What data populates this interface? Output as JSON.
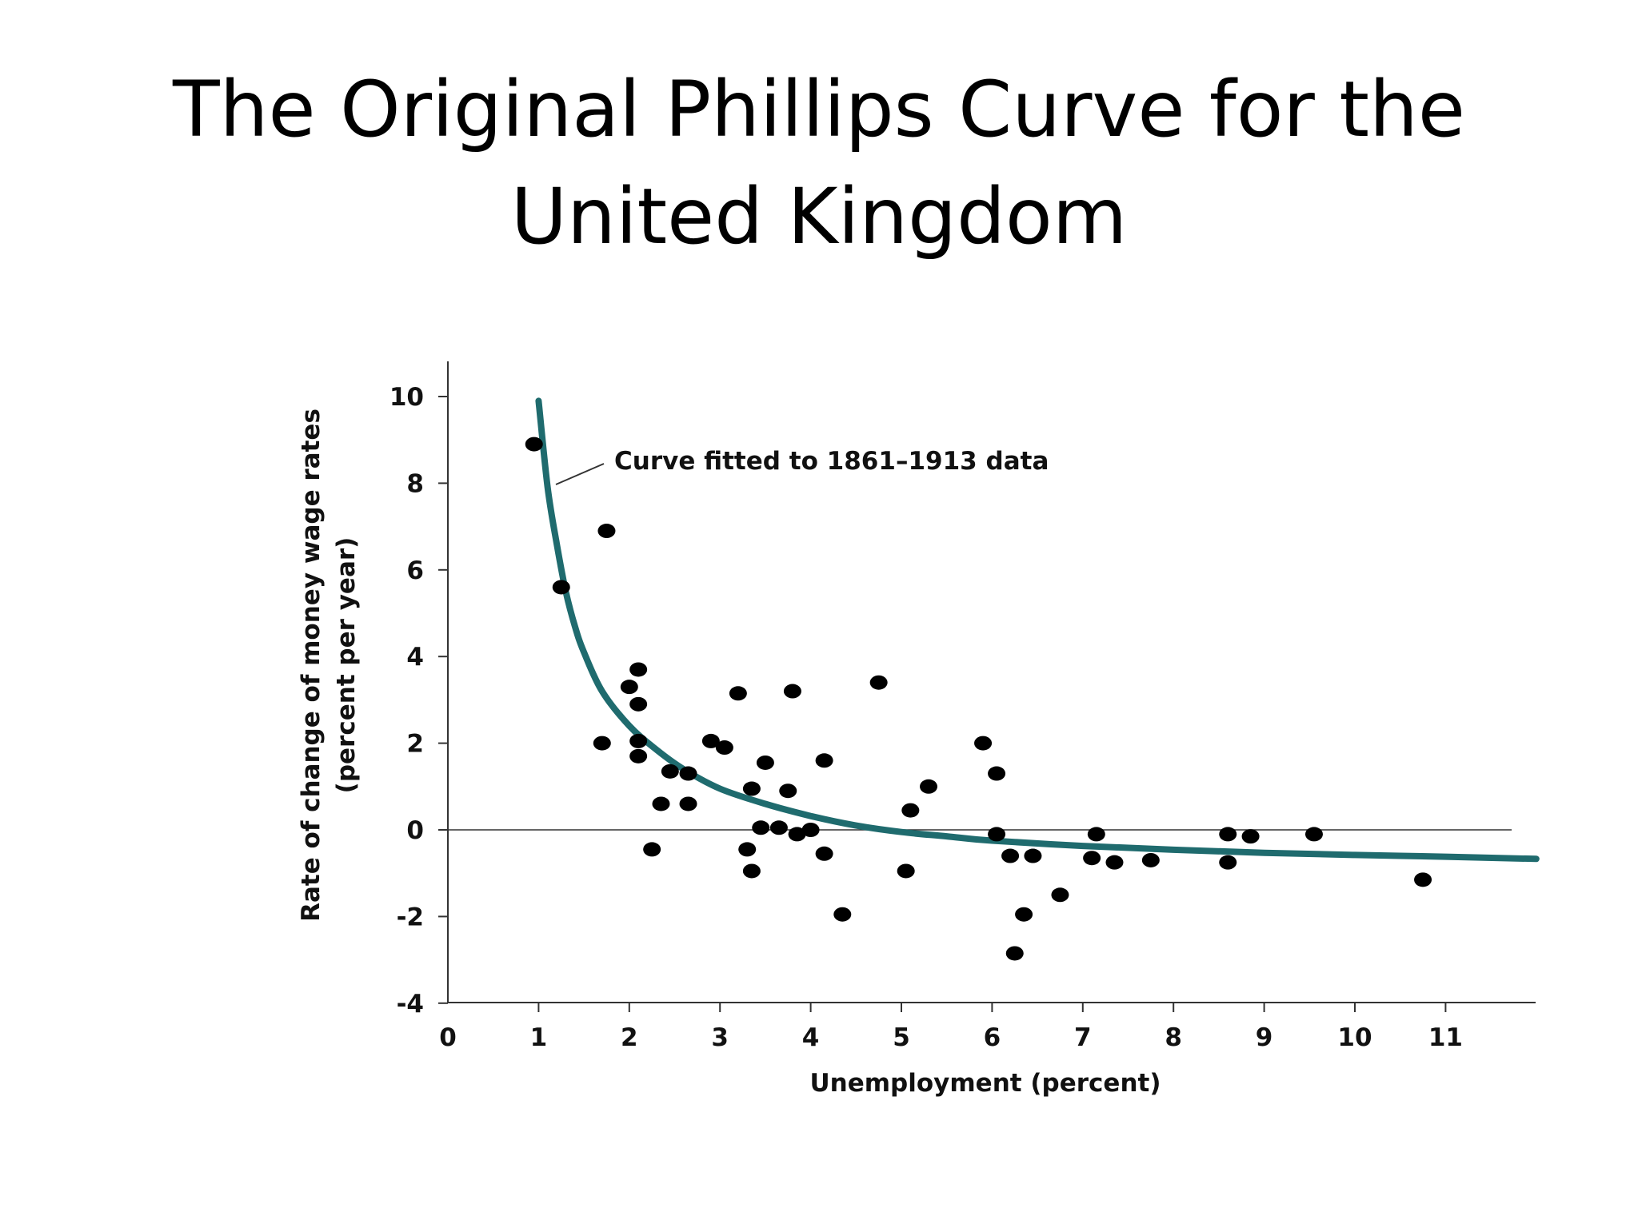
{
  "slide": {
    "title_line1": "The Original Phillips Curve for the",
    "title_line2": "United Kingdom"
  },
  "chart_data": {
    "type": "scatter",
    "title": "",
    "xlabel": "Unemployment (percent)",
    "ylabel_line1": "Rate of change of money wage rates",
    "ylabel_line2": "(percent per year)",
    "xlim": [
      0,
      12
    ],
    "ylim": [
      -4,
      10
    ],
    "x_ticks": [
      0,
      1,
      2,
      3,
      4,
      5,
      6,
      7,
      8,
      9,
      10,
      11
    ],
    "y_ticks": [
      10,
      8,
      6,
      4,
      2,
      0,
      -2,
      -4
    ],
    "grid": false,
    "zero_line": true,
    "annotation": "Curve fitted to 1861–1913 data",
    "colors": {
      "curve": "#1f6b6e",
      "points": "#000000",
      "axes": "#333333"
    },
    "curve": {
      "name": "Curve fitted to 1861–1913 data",
      "points": [
        [
          1.0,
          9.9
        ],
        [
          1.1,
          7.9
        ],
        [
          1.2,
          6.6
        ],
        [
          1.3,
          5.5
        ],
        [
          1.4,
          4.7
        ],
        [
          1.5,
          4.1
        ],
        [
          1.7,
          3.2
        ],
        [
          2.0,
          2.4
        ],
        [
          2.3,
          1.85
        ],
        [
          2.6,
          1.4
        ],
        [
          3.0,
          0.95
        ],
        [
          3.5,
          0.6
        ],
        [
          4.0,
          0.32
        ],
        [
          4.5,
          0.1
        ],
        [
          5.0,
          -0.05
        ],
        [
          5.5,
          -0.15
        ],
        [
          6.0,
          -0.25
        ],
        [
          7.0,
          -0.37
        ],
        [
          8.0,
          -0.46
        ],
        [
          9.0,
          -0.53
        ],
        [
          10.0,
          -0.58
        ],
        [
          11.0,
          -0.62
        ],
        [
          12.0,
          -0.67
        ]
      ]
    },
    "series": [
      {
        "points": [
          [
            0.95,
            8.9
          ],
          [
            1.25,
            5.6
          ],
          [
            1.75,
            6.9
          ],
          [
            1.7,
            2.0
          ],
          [
            2.0,
            3.3
          ],
          [
            2.1,
            3.7
          ],
          [
            2.1,
            2.9
          ],
          [
            2.1,
            2.05
          ],
          [
            2.1,
            1.7
          ],
          [
            2.25,
            -0.45
          ],
          [
            2.35,
            0.6
          ],
          [
            2.45,
            1.35
          ],
          [
            2.65,
            1.3
          ],
          [
            2.65,
            0.6
          ],
          [
            2.9,
            2.05
          ],
          [
            3.05,
            1.9
          ],
          [
            3.2,
            3.15
          ],
          [
            3.3,
            -0.45
          ],
          [
            3.35,
            0.95
          ],
          [
            3.35,
            -0.95
          ],
          [
            3.45,
            0.05
          ],
          [
            3.5,
            1.55
          ],
          [
            3.65,
            0.05
          ],
          [
            3.75,
            0.9
          ],
          [
            3.8,
            3.2
          ],
          [
            3.85,
            -0.1
          ],
          [
            4.0,
            0.0
          ],
          [
            4.15,
            1.6
          ],
          [
            4.15,
            -0.55
          ],
          [
            4.35,
            -1.95
          ],
          [
            4.75,
            3.4
          ],
          [
            5.05,
            -0.95
          ],
          [
            5.1,
            0.45
          ],
          [
            5.3,
            1.0
          ],
          [
            5.9,
            2.0
          ],
          [
            6.05,
            1.3
          ],
          [
            6.05,
            -0.1
          ],
          [
            6.2,
            -0.6
          ],
          [
            6.25,
            -2.85
          ],
          [
            6.35,
            -1.95
          ],
          [
            6.45,
            -0.6
          ],
          [
            6.75,
            -1.5
          ],
          [
            7.1,
            -0.65
          ],
          [
            7.15,
            -0.1
          ],
          [
            7.35,
            -0.75
          ],
          [
            7.75,
            -0.7
          ],
          [
            8.6,
            -0.1
          ],
          [
            8.6,
            -0.75
          ],
          [
            8.85,
            -0.15
          ],
          [
            9.55,
            -0.1
          ],
          [
            10.75,
            -1.15
          ]
        ]
      }
    ]
  }
}
